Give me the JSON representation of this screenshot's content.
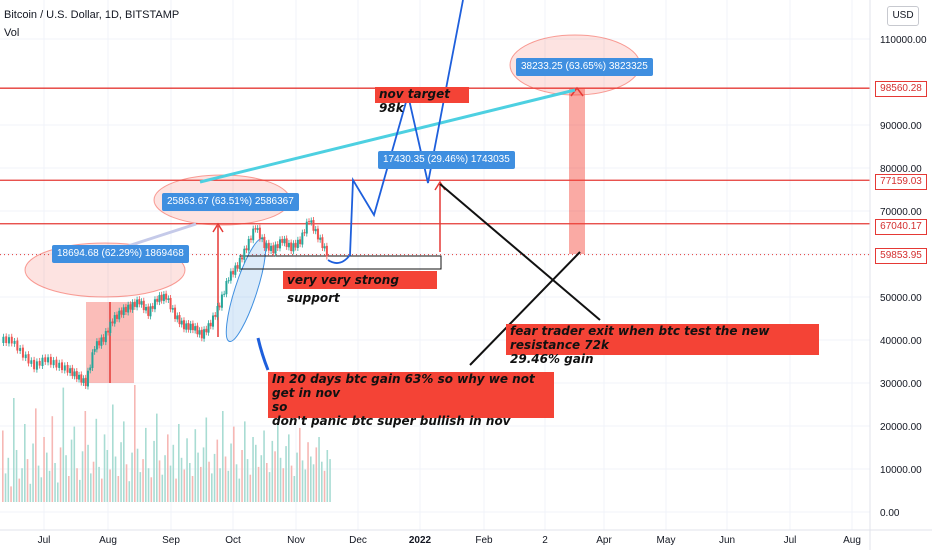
{
  "header": {
    "title": "Bitcoin / U.S. Dollar, 1D, BITSTAMP",
    "vol_label": "Vol",
    "currency_button": "USD"
  },
  "colors": {
    "up_candle": "#26a69a",
    "down_candle": "#ef5350",
    "resistance_line": "#e53935",
    "projection_line": "#1e5fdc",
    "trend_line": "#4dd0e1",
    "annotation_bg": "#f44336",
    "measure_box": "#3f8fe0"
  },
  "chart_data": {
    "type": "line",
    "x_ticks": [
      "Jul",
      "Aug",
      "Sep",
      "Oct",
      "Nov",
      "Dec",
      "2022",
      "Feb",
      "2",
      "Apr",
      "May",
      "Jun",
      "Jul",
      "Aug"
    ],
    "y_ticks": [
      "110000.00",
      "90000.00",
      "80000.00",
      "70000.00",
      "60000.00",
      "50000.00",
      "40000.00",
      "30000.00",
      "20000.00",
      "10000.00",
      "0.00"
    ],
    "ylim": [
      0,
      118000
    ],
    "grid": true,
    "series": [
      {
        "values": [
          [
            0,
            40000
          ],
          [
            5,
            39800
          ],
          [
            10,
            36500
          ],
          [
            15,
            33800
          ],
          [
            20,
            35500
          ],
          [
            25,
            34200
          ],
          [
            30,
            33000
          ],
          [
            34,
            31500
          ],
          [
            38,
            29900
          ],
          [
            42,
            38500
          ],
          [
            46,
            40200
          ],
          [
            50,
            44500
          ],
          [
            54,
            46500
          ],
          [
            58,
            47700
          ],
          [
            62,
            48900
          ],
          [
            66,
            46200
          ],
          [
            70,
            49500
          ],
          [
            74,
            50000
          ],
          [
            78,
            45500
          ],
          [
            82,
            43100
          ],
          [
            86,
            42900
          ],
          [
            90,
            41000
          ],
          [
            94,
            43800
          ],
          [
            98,
            48200
          ],
          [
            102,
            54500
          ],
          [
            106,
            57200
          ],
          [
            110,
            61500
          ],
          [
            114,
            66300
          ],
          [
            118,
            62000
          ],
          [
            122,
            60800
          ],
          [
            126,
            63200
          ],
          [
            130,
            61300
          ],
          [
            134,
            62900
          ],
          [
            138,
            68000
          ],
          [
            142,
            64000
          ],
          [
            146,
            60000
          ]
        ]
      }
    ],
    "price_labels": [
      "98560.28",
      "77159.03",
      "67040.17",
      "59853.95"
    ],
    "measurements": [
      "18694.68 (62.29%) 1869468",
      "25863.67 (63.51%) 2586367",
      "17430.35 (29.46%) 1743035",
      "38233.25 (63.65%) 3823325"
    ],
    "annotations": {
      "nov_target": "nov target 98k",
      "support": "very very strong support",
      "fear_line1": "fear trader exit when btc test the new resistance 72k",
      "fear_line2": "29.46% gain",
      "gain_line1": "In 20 days btc gain 63% so why we not get in nov",
      "gain_line2": "so",
      "gain_line3": "don't panic btc super bullish in nov"
    },
    "volume": [
      55,
      22,
      34,
      12,
      80,
      40,
      18,
      26,
      60,
      33,
      14,
      45,
      72,
      28,
      19,
      50,
      38,
      24,
      66,
      30,
      15,
      42,
      88,
      36,
      20,
      48,
      58,
      26,
      17,
      39,
      70,
      44,
      22,
      31,
      64,
      27,
      18,
      52,
      40,
      25,
      75,
      35,
      20,
      46,
      62,
      29,
      16,
      38,
      90,
      41,
      23,
      33,
      57,
      26,
      19,
      47,
      68,
      32,
      21,
      36,
      52,
      28,
      44,
      18,
      60,
      34,
      25,
      49,
      30,
      20,
      56,
      38,
      27,
      42,
      65,
      31,
      22,
      37,
      48,
      26,
      70,
      35,
      24,
      45,
      58,
      29,
      18,
      40,
      62,
      33,
      21,
      50,
      44,
      27,
      36,
      55,
      30,
      23,
      47,
      39,
      61,
      34,
      26,
      43,
      52,
      28,
      20,
      38,
      57,
      32,
      25,
      46,
      35,
      29,
      42,
      50,
      31,
      24,
      40,
      33
    ]
  }
}
